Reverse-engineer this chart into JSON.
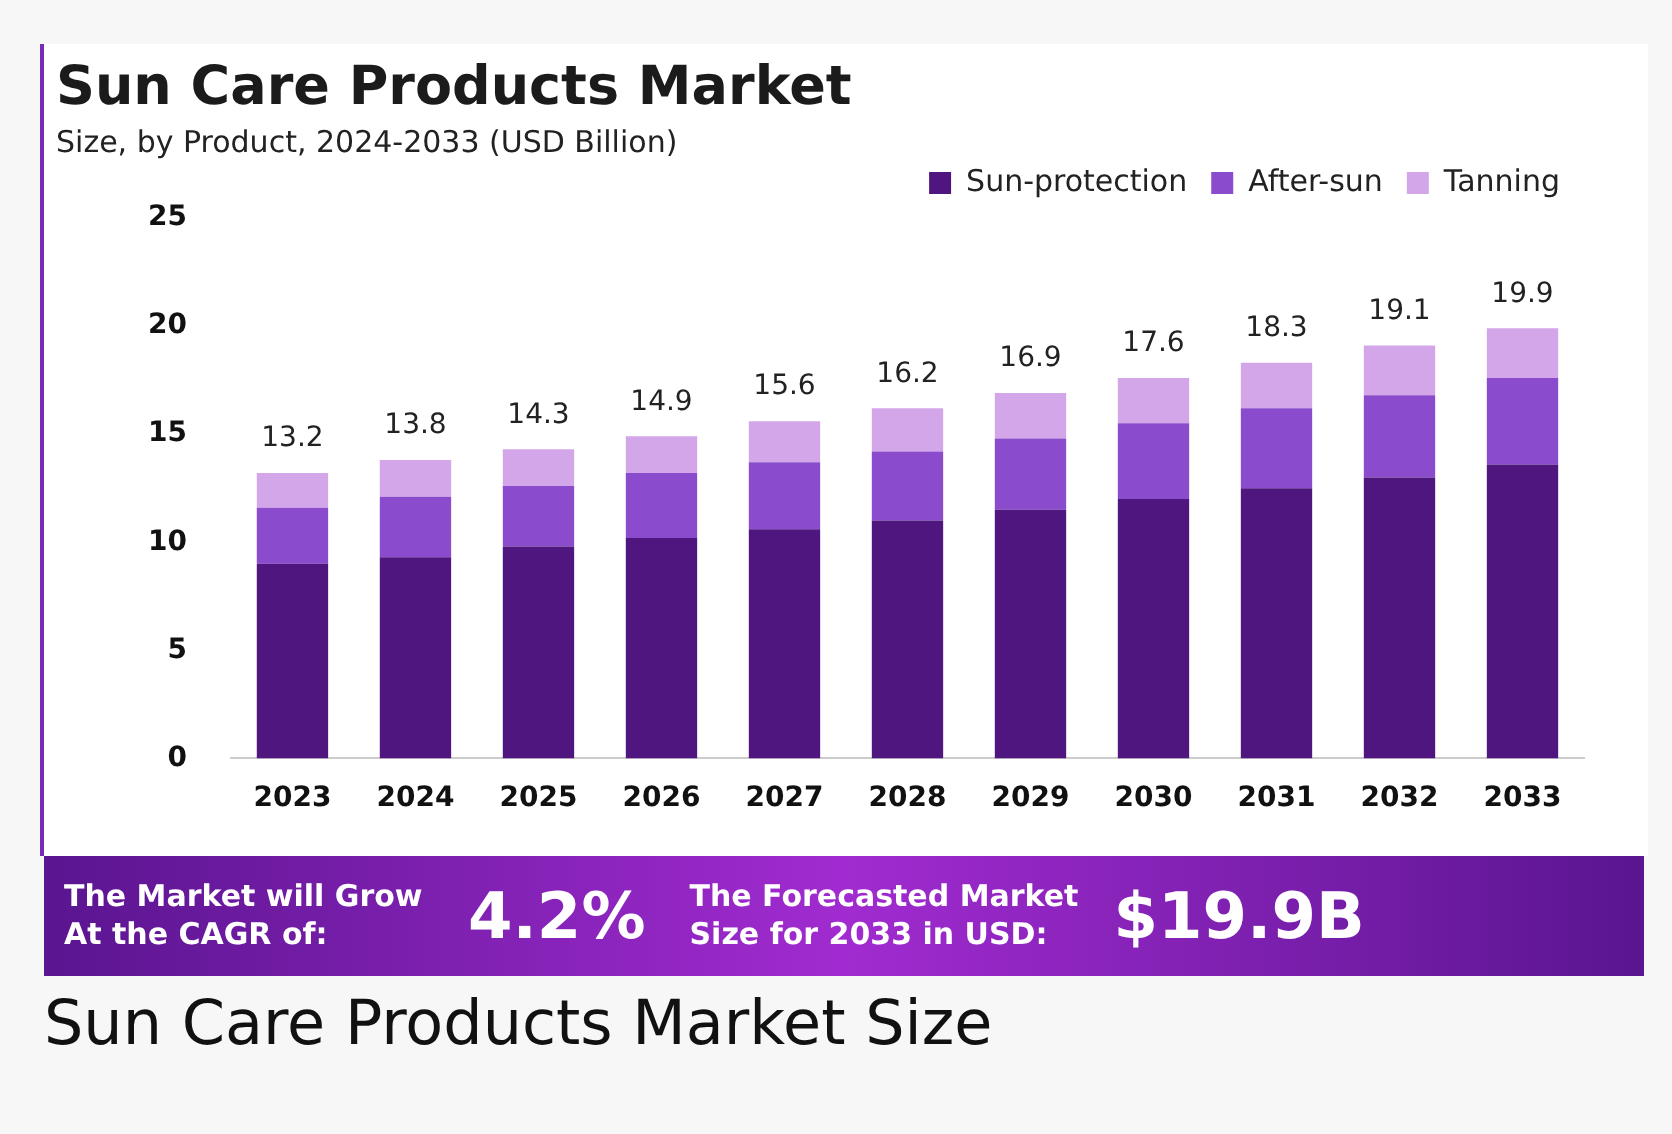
{
  "chart_data": {
    "type": "bar",
    "title": "Sun Care Products Market",
    "subtitle": "Size, by Product, 2024-2033 (USD Billion)",
    "categories": [
      "2023",
      "2024",
      "2025",
      "2026",
      "2027",
      "2028",
      "2029",
      "2030",
      "2031",
      "2032",
      "2033"
    ],
    "stacked": true,
    "series": [
      {
        "name": "Sun-protection",
        "color": "#4f1680",
        "values": [
          9.0,
          9.3,
          9.8,
          10.2,
          10.6,
          11.0,
          11.5,
          12.0,
          12.5,
          13.0,
          13.6
        ]
      },
      {
        "name": "After-sun",
        "color": "#8a4bcc",
        "values": [
          2.6,
          2.8,
          2.8,
          3.0,
          3.1,
          3.2,
          3.3,
          3.5,
          3.7,
          3.8,
          4.0
        ]
      },
      {
        "name": "Tanning",
        "color": "#d3a6ea",
        "values": [
          1.6,
          1.7,
          1.7,
          1.7,
          1.9,
          2.0,
          2.1,
          2.1,
          2.1,
          2.3,
          2.3
        ]
      }
    ],
    "totals": [
      "13.2",
      "13.8",
      "14.3",
      "14.9",
      "15.6",
      "16.2",
      "16.9",
      "17.6",
      "18.3",
      "19.1",
      "19.9"
    ],
    "ylim": [
      0,
      25
    ],
    "yticks": [
      0,
      5,
      10,
      15,
      20,
      25
    ],
    "grid": false,
    "legend": "top right",
    "annotations": [
      "The Market will Grow At the CAGR of:",
      "4.2%",
      "The Forecasted Market Size for 2033 in USD:",
      "$19.9B",
      "Sun Care Products Market Size"
    ]
  }
}
